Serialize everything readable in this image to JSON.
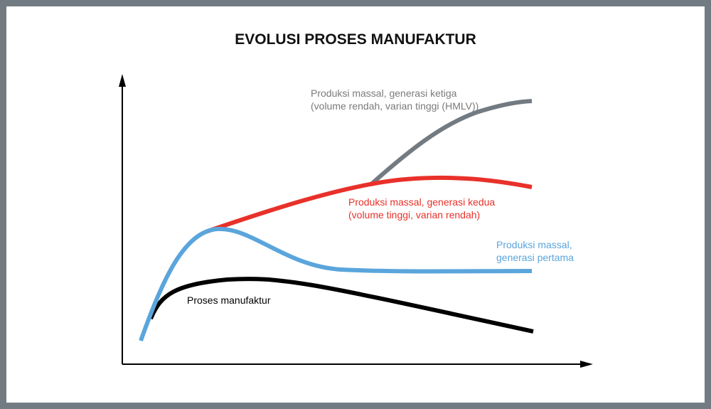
{
  "title": "EVOLUSI PROSES MANUFAKTUR",
  "labels": [
    {
      "lines": [
        "Produksi massal, generasi ketiga",
        "(volume rendah, varian tinggi (HMLV))"
      ]
    },
    {
      "lines": [
        "Produksi massal, generasi kedua",
        "(volume tinggi, varian rendah)"
      ]
    },
    {
      "lines": [
        "Produksi massal,",
        "generasi pertama"
      ]
    },
    {
      "lines": [
        "Proses manufaktur"
      ]
    }
  ]
}
